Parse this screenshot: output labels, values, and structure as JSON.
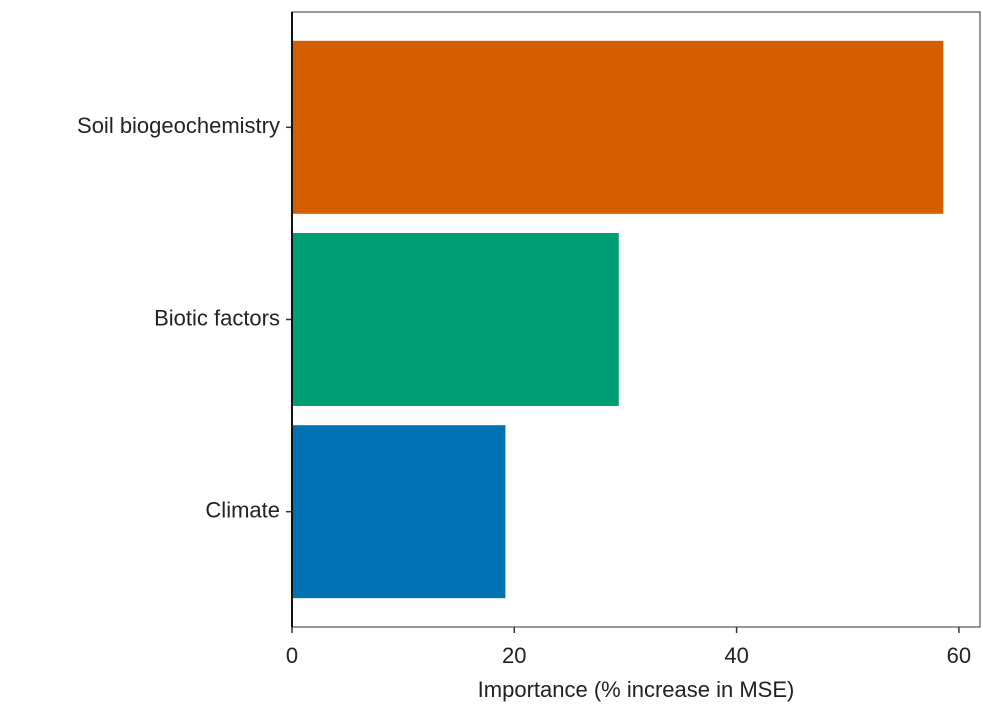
{
  "chart_data": {
    "type": "hbar",
    "x_label": "Importance (% increase in MSE)",
    "categories": [
      "Soil biogeochemistry",
      "Biotic factors",
      "Climate"
    ],
    "values": [
      58.6,
      29.4,
      19.2
    ],
    "colors": [
      "#d55e00",
      "#009e73",
      "#0072b2"
    ],
    "xlim": [
      0,
      61.9
    ],
    "xticks": [
      0,
      20,
      40,
      60
    ],
    "grid": false
  }
}
